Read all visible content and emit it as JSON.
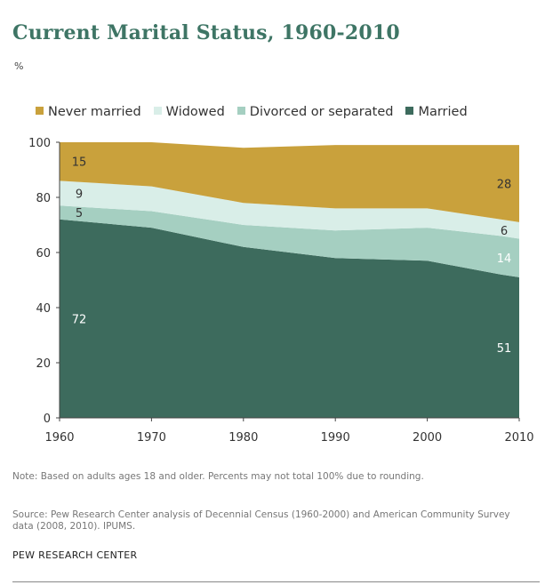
{
  "title": "Current Marital Status, 1960-2010",
  "unit_label": "%",
  "note": "Note: Based on adults ages 18 and older. Percents may not total 100% due to rounding.",
  "source": "Source: Pew Research Center analysis of Decennial Census (1960-2000) and American Community Survey  data (2008, 2010). IPUMS.",
  "brand": "PEW RESEARCH CENTER",
  "chart_data": {
    "type": "area",
    "stacked": true,
    "x": [
      1960,
      1970,
      1980,
      1990,
      2000,
      2008,
      2010
    ],
    "xticks": [
      "1960",
      "1970",
      "1980",
      "1990",
      "2000",
      "2010"
    ],
    "yticks": [
      "0",
      "20",
      "40",
      "60",
      "80",
      "100"
    ],
    "ylim": [
      0,
      100
    ],
    "xlim": [
      1960,
      2010
    ],
    "grid": false,
    "legend_position": "top",
    "series": [
      {
        "name": "Married",
        "color": "#3d6b5d",
        "values": [
          72,
          69,
          62,
          58,
          57,
          52,
          51
        ]
      },
      {
        "name": "Divorced or separated",
        "color": "#a5cfc1",
        "values": [
          5,
          6,
          8,
          10,
          12,
          14,
          14
        ]
      },
      {
        "name": "Widowed",
        "color": "#d9eee8",
        "values": [
          9,
          9,
          8,
          8,
          7,
          6,
          6
        ]
      },
      {
        "name": "Never married",
        "color": "#c9a13c",
        "values": [
          15,
          16,
          20,
          23,
          23,
          27,
          28
        ]
      }
    ],
    "legend_order": [
      "Never married",
      "Widowed",
      "Divorced or separated",
      "Married"
    ],
    "data_labels": [
      {
        "series": "Never married",
        "year": 1960,
        "text": "15",
        "color": "#333333"
      },
      {
        "series": "Widowed",
        "year": 1960,
        "text": "9",
        "color": "#333333"
      },
      {
        "series": "Divorced or separated",
        "year": 1960,
        "text": "5",
        "color": "#333333"
      },
      {
        "series": "Married",
        "year": 1960,
        "text": "72",
        "color": "#ffffff"
      },
      {
        "series": "Never married",
        "year": 2010,
        "text": "28",
        "color": "#333333"
      },
      {
        "series": "Widowed",
        "year": 2010,
        "text": "6",
        "color": "#333333"
      },
      {
        "series": "Divorced or separated",
        "year": 2010,
        "text": "14",
        "color": "#ffffff"
      },
      {
        "series": "Married",
        "year": 2010,
        "text": "51",
        "color": "#ffffff"
      }
    ]
  }
}
